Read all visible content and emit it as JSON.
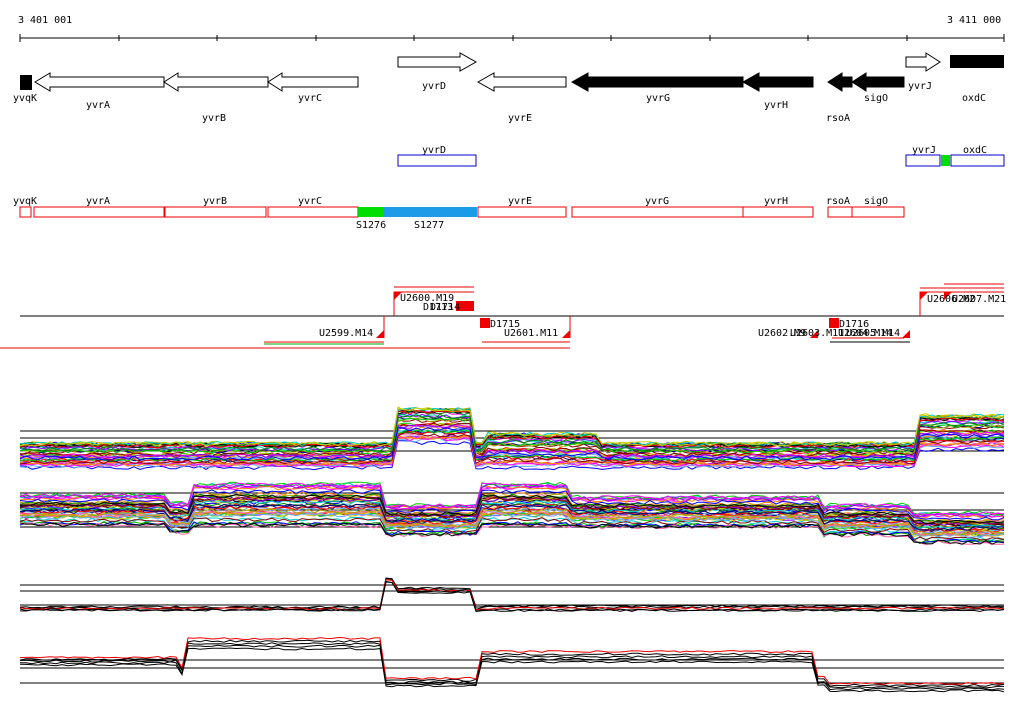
{
  "coordinates": {
    "start": "3 401 001",
    "end": "3 411 000"
  },
  "genes_row1": [
    "yvqK",
    "yvrA",
    "yvrB",
    "yvrC",
    "yvrD",
    "yvrE",
    "yvrG",
    "yvrH",
    "rsoA",
    "sigO",
    "yvrJ",
    "oxdC"
  ],
  "blue_boxes": [
    "yvrD",
    "yvrJ",
    "oxdC"
  ],
  "red_boxes": [
    "yvqK",
    "yvrA",
    "yvrB",
    "yvrC",
    "yvrE",
    "yvrG",
    "yvrH",
    "rsoA",
    "sigO"
  ],
  "segments": [
    "S1276",
    "S1277"
  ],
  "segment_colors": {
    "S1276": "#00dd00",
    "S1277": "#1e9be8"
  },
  "features": [
    "U2600.M19",
    "D1713",
    "D1714",
    "D1715",
    "U2599.M14",
    "U2601.M11",
    "U2602.M9",
    "U2603.M11",
    "D1716",
    "U2604.M14",
    "U2605.M14",
    "U2606.M2",
    "U2607.M21"
  ],
  "colors": {
    "gene_fill": "#000000",
    "red": "#ee0000",
    "blue": "#0000cc",
    "track_lines": "#000000"
  }
}
